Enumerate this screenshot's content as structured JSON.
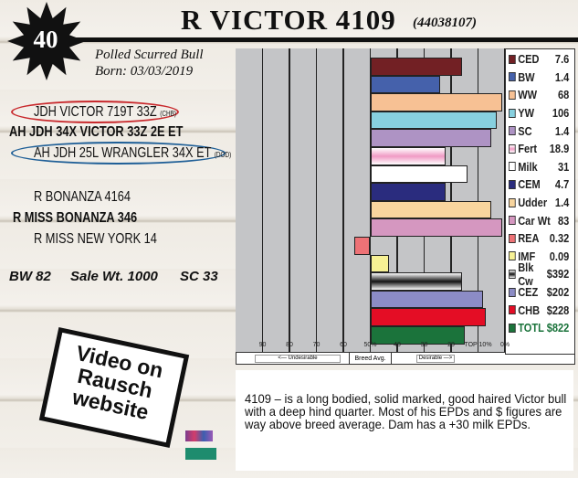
{
  "lot": {
    "number": "40"
  },
  "header": {
    "title": "R VICTOR 4109",
    "registration": "(44038107)"
  },
  "info": {
    "type": "Polled Scurred  Bull",
    "born": "Born: 03/03/2019"
  },
  "pedigree": {
    "sire_sire": "JDH VICTOR 719T 33Z",
    "sire_sire_tag": "(CHB)",
    "sire": "AH JDH 34X VICTOR 33Z 2E ET",
    "sire_dam": "AH JDH 25L WRANGLER 34X ET",
    "sire_dam_tag": "(DOD)",
    "dam_sire": "R BONANZA 4164",
    "dam": "R MISS BONANZA 346",
    "dam_dam": "R MISS NEW YORK 14"
  },
  "stats": {
    "bw": "BW 82",
    "sale_wt": "Sale Wt. 1000",
    "sc": "SC 33"
  },
  "video": {
    "label": "Video on Rausch website"
  },
  "description": {
    "text": "4109 – is a long bodied, solid marked, good haired Victor bull with a deep hind quarter. Most of his EPDs and $ figures are way above breed average. Dam has a +30 milk EPDs."
  },
  "chart_data": {
    "type": "bar",
    "orientation": "horizontal",
    "x_scale": "percentile rank, 100 (left) to 0% (right), baseline at breed average 50%",
    "tick_labels": [
      "90",
      "80",
      "70",
      "60",
      "50%",
      "40",
      "30",
      "20",
      "TOP 10%",
      "0%"
    ],
    "axis_labels": {
      "left": "<— Undesirable",
      "center": "Breed Avg.",
      "right": "Desirable —>"
    },
    "grid": true,
    "legend": "right",
    "series": [
      {
        "name": "CED",
        "value": "7.6",
        "percentile": 16,
        "color": "#722024"
      },
      {
        "name": "BW",
        "value": "1.4",
        "percentile": 24,
        "color": "#4561ab"
      },
      {
        "name": "WW",
        "value": "68",
        "percentile": 1,
        "color": "#f7c194"
      },
      {
        "name": "YW",
        "value": "106",
        "percentile": 3,
        "color": "#87d0df"
      },
      {
        "name": "SC",
        "value": "1.4",
        "percentile": 5,
        "color": "#ae93c4"
      },
      {
        "name": "Fert",
        "value": "18.9",
        "percentile": 22,
        "color": "#f09ac4"
      },
      {
        "name": "Milk",
        "value": "31",
        "percentile": 14,
        "color": "#ffffff"
      },
      {
        "name": "CEM",
        "value": "4.7",
        "percentile": 22,
        "color": "#2a2c7e"
      },
      {
        "name": "Udder",
        "value": "1.4",
        "percentile": 5,
        "color": "#f8d59e"
      },
      {
        "name": "Car Wt",
        "value": "83",
        "percentile": 1,
        "color": "#d597c0"
      },
      {
        "name": "REA",
        "value": "0.32",
        "percentile": 56,
        "color": "#ee7276"
      },
      {
        "name": "IMF",
        "value": "0.09",
        "percentile": 43,
        "color": "#f7f194"
      },
      {
        "name": "Blk Cw",
        "value": "$392",
        "percentile": 16,
        "color": "#555555"
      },
      {
        "name": "CEZ",
        "value": "$202",
        "percentile": 8,
        "color": "#8c8cc6"
      },
      {
        "name": "CHB",
        "value": "$228",
        "percentile": 7,
        "color": "#e40d25"
      },
      {
        "name": "TOTL",
        "value": "$822",
        "percentile": 15,
        "color": "#1b733b"
      }
    ]
  }
}
